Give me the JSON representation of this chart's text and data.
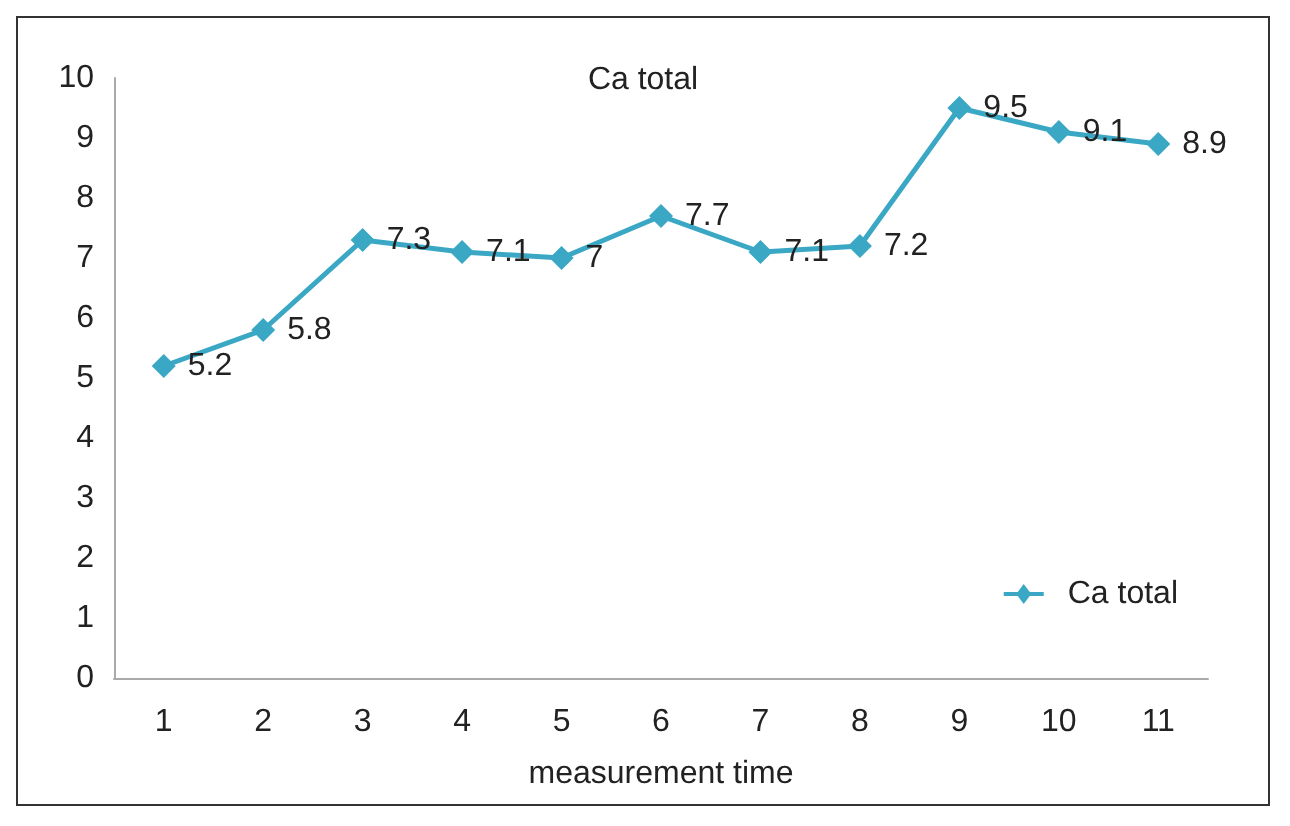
{
  "chart_data": {
    "type": "line",
    "title": "Ca total",
    "xlabel": "measurement time",
    "categories": [
      "1",
      "2",
      "3",
      "4",
      "5",
      "6",
      "7",
      "8",
      "9",
      "10",
      "11"
    ],
    "series": [
      {
        "name": "Ca total",
        "color": "#3aa8c4",
        "values": [
          5.2,
          5.8,
          7.3,
          7.1,
          7,
          7.7,
          7.1,
          7.2,
          9.5,
          9.1,
          8.9
        ]
      }
    ],
    "ylim": [
      0,
      10
    ],
    "yticks": [
      0,
      1,
      2,
      3,
      4,
      5,
      6,
      7,
      8,
      9,
      10
    ],
    "grid": false,
    "legend": "right",
    "marker": "diamond",
    "line_style": "solid",
    "data_labels": true
  }
}
